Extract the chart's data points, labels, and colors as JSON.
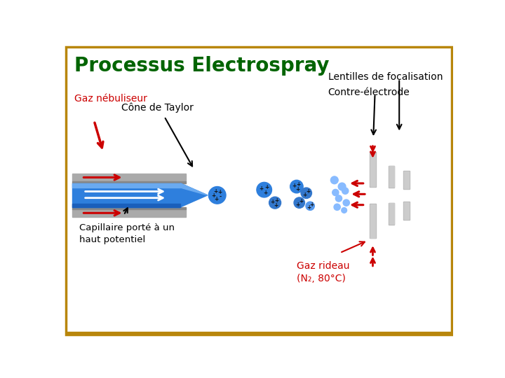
{
  "title": "Processus Electrospray",
  "title_color": "#006400",
  "title_fontsize": 20,
  "bg_color": "#FFFFFF",
  "border_color": "#B8860B",
  "label_gaz_nebuliseur": "Gaz nébuliseur",
  "label_cone_taylor": "Cône de Taylor",
  "label_capillaire": "Capillaire porté à un\nhaut potentiel",
  "label_lentilles": "Lentilles de focalisation",
  "label_contre_electrode": "Contre-électrode",
  "label_gaz_rideau": "Gaz rideau\n(N₂, 80°C)",
  "red_color": "#CC0000",
  "black_color": "#000000",
  "gray_color": "#AAAAAA",
  "gray_dark": "#888888",
  "blue_dark": "#1A5FBB",
  "blue_mid": "#2E7FDD",
  "blue_light": "#6AAAF0",
  "blue_dot": "#5599EE",
  "blue_dot2": "#88BBFF"
}
